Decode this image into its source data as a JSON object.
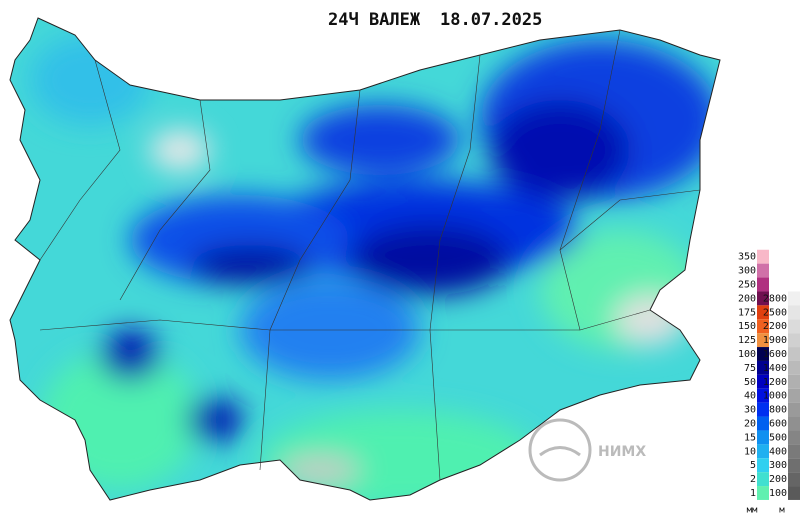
{
  "header": {
    "title": "24Ч ВАЛЕЖ",
    "date": "18.07.2025"
  },
  "legend": {
    "precipitation": {
      "unit": "мм",
      "labels": [
        "350",
        "300",
        "250",
        "200",
        "175",
        "150",
        "125",
        "100",
        "75",
        "50",
        "40",
        "30",
        "20",
        "15",
        "10",
        "5",
        "2",
        "1"
      ]
    },
    "elevation": {
      "unit": "м",
      "labels": [
        "2800",
        "2500",
        "2200",
        "1900",
        "1600",
        "1400",
        "1200",
        "1000",
        "800",
        "600",
        "500",
        "400",
        "300",
        "200",
        "100"
      ]
    }
  },
  "logo": {
    "text": "НИМХ"
  }
}
